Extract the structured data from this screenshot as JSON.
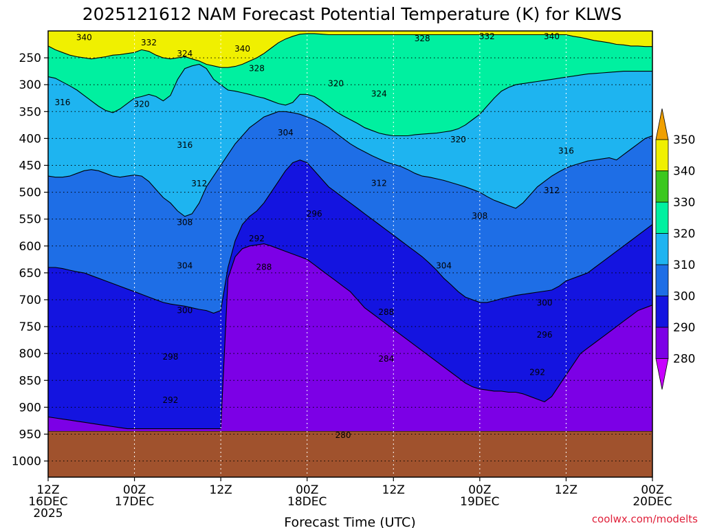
{
  "title": "2025121612 NAM Forecast Potential Temperature (K) for KLWS",
  "credit": "coolwx.com/modelts",
  "chart_data": {
    "type": "contour-cross-section",
    "title": "2025121612 NAM Forecast Potential Temperature (K) for KLWS",
    "xlabel": "Forecast Time (UTC)",
    "ylabel": "",
    "x_ticks": [
      {
        "hours": 0,
        "line1": "12Z",
        "line2": "16DEC",
        "line3": "2025"
      },
      {
        "hours": 12,
        "line1": "00Z",
        "line2": "17DEC",
        "line3": ""
      },
      {
        "hours": 24,
        "line1": "12Z",
        "line2": "",
        "line3": ""
      },
      {
        "hours": 36,
        "line1": "00Z",
        "line2": "18DEC",
        "line3": ""
      },
      {
        "hours": 48,
        "line1": "12Z",
        "line2": "",
        "line3": ""
      },
      {
        "hours": 60,
        "line1": "00Z",
        "line2": "19DEC",
        "line3": ""
      },
      {
        "hours": 72,
        "line1": "12Z",
        "line2": "",
        "line3": ""
      },
      {
        "hours": 84,
        "line1": "00Z",
        "line2": "20DEC",
        "line3": ""
      }
    ],
    "xlim_hours": [
      0,
      84
    ],
    "y_ticks": [
      250,
      300,
      350,
      400,
      450,
      500,
      550,
      600,
      650,
      700,
      750,
      800,
      850,
      900,
      950,
      1000
    ],
    "y_unit": "hPa",
    "ylim": [
      200,
      1030
    ],
    "surface_pressure_hPa": 945,
    "colorbar": {
      "levels": [
        280,
        290,
        300,
        310,
        320,
        330,
        340,
        350
      ],
      "colors": [
        "#c800ff",
        "#7c00e6",
        "#1414e0",
        "#1e6ee6",
        "#1eb4f0",
        "#00f0a0",
        "#3cc81e",
        "#f0f000",
        "#f0a000"
      ]
    },
    "contour_interval": 2,
    "series": [
      {
        "name": "280",
        "p": [
          945,
          945,
          945,
          945,
          945,
          945,
          945,
          945,
          945,
          945,
          945,
          945,
          945,
          945,
          945,
          945,
          945,
          945,
          945,
          945,
          945,
          945,
          945,
          945,
          945,
          945,
          945,
          945,
          945,
          945,
          945,
          945,
          945,
          945,
          945,
          945,
          945,
          945,
          945,
          945,
          945,
          945,
          945,
          945,
          945,
          945,
          945,
          945,
          945,
          945,
          945,
          945,
          945,
          945,
          945,
          945,
          945,
          945,
          945,
          945,
          945,
          945,
          945,
          945,
          945,
          945,
          945,
          945,
          945,
          945,
          945,
          945,
          945,
          945,
          945,
          945,
          945,
          945,
          945,
          945,
          945,
          945,
          945,
          945,
          945
        ]
      },
      {
        "name": "290",
        "p": [
          918,
          920,
          922,
          924,
          926,
          928,
          930,
          932,
          934,
          936,
          938,
          940,
          940,
          940,
          940,
          940,
          940,
          940,
          940,
          940,
          940,
          940,
          940,
          940,
          940,
          660,
          620,
          605,
          600,
          598,
          596,
          600,
          605,
          610,
          615,
          620,
          625,
          635,
          645,
          655,
          665,
          675,
          685,
          700,
          715,
          725,
          735,
          745,
          755,
          765,
          775,
          785,
          795,
          805,
          815,
          825,
          835,
          845,
          855,
          862,
          866,
          868,
          870,
          870,
          872,
          872,
          875,
          880,
          885,
          890,
          880,
          860,
          840,
          820,
          800,
          790,
          780,
          770,
          760,
          750,
          740,
          730,
          720,
          715,
          710
        ]
      },
      {
        "name": "300",
        "p": [
          640,
          640,
          642,
          645,
          648,
          650,
          655,
          660,
          665,
          670,
          675,
          680,
          685,
          690,
          695,
          700,
          705,
          708,
          710,
          712,
          715,
          718,
          720,
          725,
          720,
          640,
          590,
          560,
          545,
          535,
          520,
          500,
          480,
          460,
          445,
          440,
          445,
          460,
          475,
          490,
          500,
          510,
          520,
          530,
          540,
          550,
          560,
          570,
          580,
          590,
          600,
          610,
          620,
          632,
          645,
          660,
          672,
          685,
          695,
          700,
          705,
          705,
          702,
          698,
          695,
          692,
          690,
          688,
          686,
          684,
          682,
          675,
          665,
          660,
          655,
          650,
          640,
          630,
          620,
          610,
          600,
          590,
          580,
          570,
          560
        ]
      },
      {
        "name": "310",
        "p": [
          470,
          472,
          472,
          470,
          465,
          460,
          458,
          460,
          465,
          470,
          472,
          470,
          468,
          470,
          480,
          495,
          510,
          520,
          535,
          545,
          540,
          520,
          490,
          470,
          450,
          430,
          410,
          395,
          380,
          370,
          360,
          355,
          350,
          350,
          352,
          355,
          360,
          365,
          372,
          380,
          390,
          400,
          410,
          418,
          425,
          432,
          438,
          444,
          448,
          452,
          458,
          465,
          470,
          472,
          475,
          478,
          482,
          486,
          490,
          495,
          500,
          508,
          515,
          520,
          525,
          530,
          520,
          505,
          490,
          480,
          470,
          462,
          455,
          450,
          446,
          442,
          440,
          438,
          436,
          440,
          430,
          420,
          410,
          400,
          395
        ]
      },
      {
        "name": "320",
        "p": [
          285,
          288,
          295,
          302,
          310,
          320,
          330,
          340,
          348,
          352,
          345,
          335,
          325,
          322,
          318,
          322,
          330,
          320,
          290,
          270,
          265,
          262,
          270,
          290,
          300,
          310,
          312,
          315,
          318,
          322,
          325,
          330,
          335,
          338,
          333,
          318,
          318,
          322,
          330,
          340,
          350,
          358,
          365,
          372,
          380,
          385,
          390,
          393,
          395,
          395,
          395,
          393,
          392,
          391,
          390,
          388,
          386,
          382,
          375,
          365,
          355,
          340,
          325,
          312,
          305,
          300,
          298,
          296,
          294,
          292,
          290,
          288,
          286,
          284,
          282,
          280,
          279,
          278,
          277,
          276,
          275,
          275,
          275,
          275,
          275
        ]
      },
      {
        "name": "330",
        "p": [
          228,
          235,
          240,
          245,
          248,
          250,
          252,
          250,
          248,
          245,
          244,
          242,
          240,
          235,
          238,
          245,
          250,
          252,
          250,
          248,
          252,
          256,
          262,
          265,
          268,
          268,
          266,
          262,
          256,
          250,
          242,
          232,
          222,
          215,
          210,
          206,
          205,
          205,
          206,
          207,
          207,
          207,
          207,
          207,
          207,
          207,
          207,
          207,
          207,
          207,
          207,
          207,
          207,
          207,
          207,
          207,
          207,
          207,
          207,
          207,
          207,
          207,
          207,
          207,
          207,
          207,
          207,
          207,
          207,
          207,
          207,
          207,
          207,
          210,
          212,
          215,
          218,
          220,
          222,
          225,
          226,
          228,
          228,
          229,
          229
        ]
      }
    ],
    "contour_labels": [
      {
        "value": "340",
        "hours": 5,
        "p": 212
      },
      {
        "value": "332",
        "hours": 14,
        "p": 222
      },
      {
        "value": "324",
        "hours": 19,
        "p": 242
      },
      {
        "value": "340",
        "hours": 27,
        "p": 233
      },
      {
        "value": "328",
        "hours": 29,
        "p": 270
      },
      {
        "value": "320",
        "hours": 40,
        "p": 298
      },
      {
        "value": "324",
        "hours": 46,
        "p": 317
      },
      {
        "value": "328",
        "hours": 52,
        "p": 214
      },
      {
        "value": "332",
        "hours": 61,
        "p": 210
      },
      {
        "value": "340",
        "hours": 70,
        "p": 210
      },
      {
        "value": "316",
        "hours": 2,
        "p": 333
      },
      {
        "value": "320",
        "hours": 13,
        "p": 336
      },
      {
        "value": "316",
        "hours": 19,
        "p": 412
      },
      {
        "value": "304",
        "hours": 33,
        "p": 389
      },
      {
        "value": "320",
        "hours": 57,
        "p": 402
      },
      {
        "value": "312",
        "hours": 21,
        "p": 484
      },
      {
        "value": "312",
        "hours": 46,
        "p": 483
      },
      {
        "value": "316",
        "hours": 72,
        "p": 423
      },
      {
        "value": "312",
        "hours": 70,
        "p": 497
      },
      {
        "value": "308",
        "hours": 19,
        "p": 556
      },
      {
        "value": "308",
        "hours": 60,
        "p": 544
      },
      {
        "value": "296",
        "hours": 37,
        "p": 540
      },
      {
        "value": "292",
        "hours": 29,
        "p": 586
      },
      {
        "value": "288",
        "hours": 30,
        "p": 639
      },
      {
        "value": "304",
        "hours": 19,
        "p": 637
      },
      {
        "value": "304",
        "hours": 55,
        "p": 637
      },
      {
        "value": "300",
        "hours": 19,
        "p": 720
      },
      {
        "value": "300",
        "hours": 69,
        "p": 706
      },
      {
        "value": "288",
        "hours": 47,
        "p": 723
      },
      {
        "value": "296",
        "hours": 69,
        "p": 765
      },
      {
        "value": "298",
        "hours": 17,
        "p": 806
      },
      {
        "value": "284",
        "hours": 47,
        "p": 810
      },
      {
        "value": "292",
        "hours": 68,
        "p": 835
      },
      {
        "value": "292",
        "hours": 17,
        "p": 887
      },
      {
        "value": "280",
        "hours": 41,
        "p": 952
      }
    ]
  }
}
